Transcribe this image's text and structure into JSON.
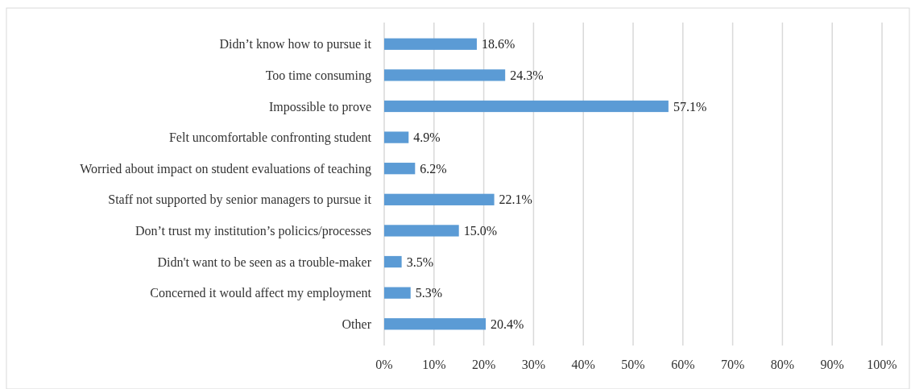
{
  "chart_data": {
    "type": "bar",
    "orientation": "horizontal",
    "categories": [
      "Didn’t know how to pursue it",
      "Too time consuming",
      "Impossible to prove",
      "Felt uncomfortable confronting student",
      "Worried about impact on student evaluations of teaching",
      "Staff not supported by senior managers to pursue it",
      "Don’t trust my institution’s policics/processes",
      "Didn't want to be seen as a trouble-maker",
      "Concerned it would affect my employment",
      "Other"
    ],
    "values": [
      18.6,
      24.3,
      57.1,
      4.9,
      6.2,
      22.1,
      15.0,
      3.5,
      5.3,
      20.4
    ],
    "value_labels": [
      "18.6%",
      "24.3%",
      "57.1%",
      "4.9%",
      "6.2%",
      "22.1%",
      "15.0%",
      "3.5%",
      "5.3%",
      "20.4%"
    ],
    "color": "#5b9bd5",
    "xlim": [
      0,
      100
    ],
    "xticks": [
      {
        "value": 0,
        "label": "0%"
      },
      {
        "value": 10,
        "label": "10%"
      },
      {
        "value": 20,
        "label": "20%"
      },
      {
        "value": 30,
        "label": "30%"
      },
      {
        "value": 40,
        "label": "40%"
      },
      {
        "value": 50,
        "label": "50%"
      },
      {
        "value": 60,
        "label": "60%"
      },
      {
        "value": 70,
        "label": "70%"
      },
      {
        "value": 80,
        "label": "80%"
      },
      {
        "value": 90,
        "label": "90%"
      },
      {
        "value": 100,
        "label": "100%"
      }
    ],
    "grid": "x"
  }
}
